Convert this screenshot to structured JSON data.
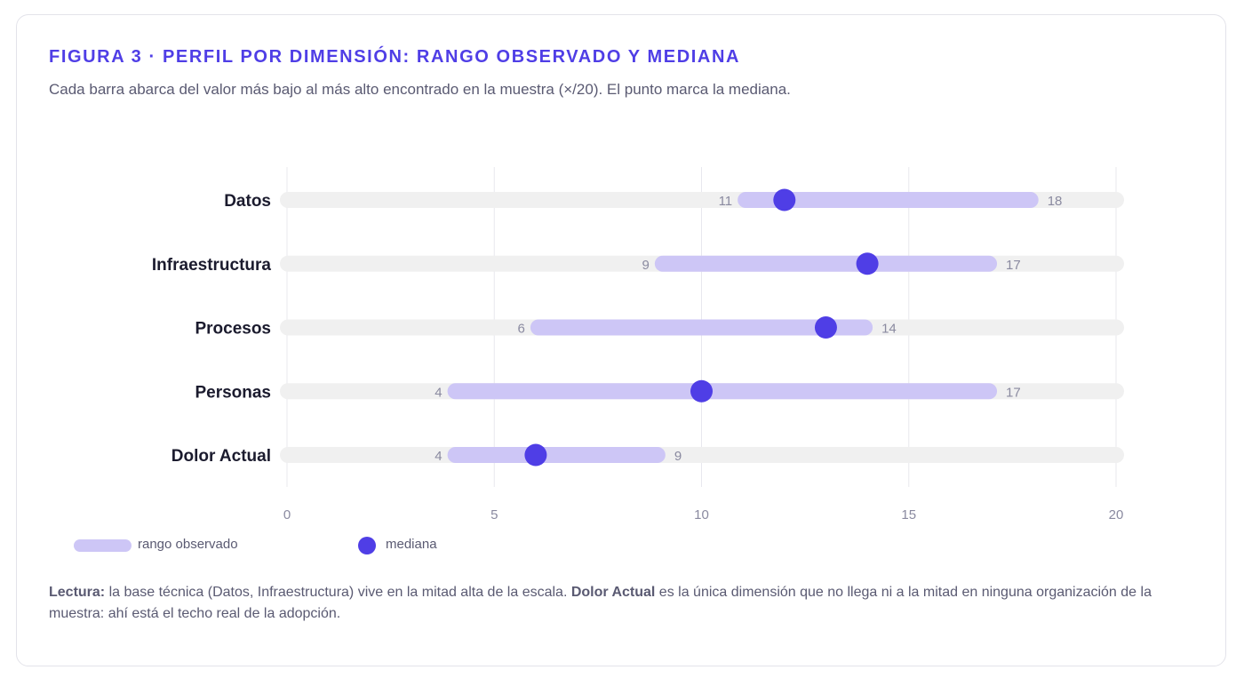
{
  "header": {
    "title": "FIGURA 3 · PERFIL POR DIMENSIÓN: RANGO OBSERVADO Y MEDIANA",
    "subtitle": "Cada barra abarca del valor más bajo al más alto encontrado en la muestra (×/20). El punto marca la mediana."
  },
  "chart_data": {
    "type": "range",
    "xlim": [
      0,
      20
    ],
    "x_ticks": [
      "0",
      "5",
      "10",
      "15",
      "20"
    ],
    "grid": true,
    "categories": [
      "Datos",
      "Infraestructura",
      "Procesos",
      "Personas",
      "Dolor Actual"
    ],
    "series": [
      {
        "name": "rango observado",
        "min": [
          11,
          9,
          6,
          4,
          4
        ],
        "max": [
          18,
          17,
          14,
          17,
          9
        ]
      },
      {
        "name": "mediana",
        "values": [
          12,
          14,
          13,
          10,
          6
        ]
      }
    ],
    "colors": {
      "track": "#f0f0f0",
      "range": "#cdc6f6",
      "median": "#4f3ee6",
      "grid": "#e8e8ee",
      "label": "#8a8aa0"
    }
  },
  "legend": {
    "range_label": "rango observado",
    "median_label": "mediana"
  },
  "note": {
    "lead_bold": "Lectura:",
    "text1": " la base técnica (Datos, Infraestructura) vive en la mitad alta de la escala. ",
    "bold2": "Dolor Actual",
    "text2": " es la única dimensión que no llega ni a la mitad en ninguna organización de la muestra: ahí está el techo real de la adopción."
  }
}
